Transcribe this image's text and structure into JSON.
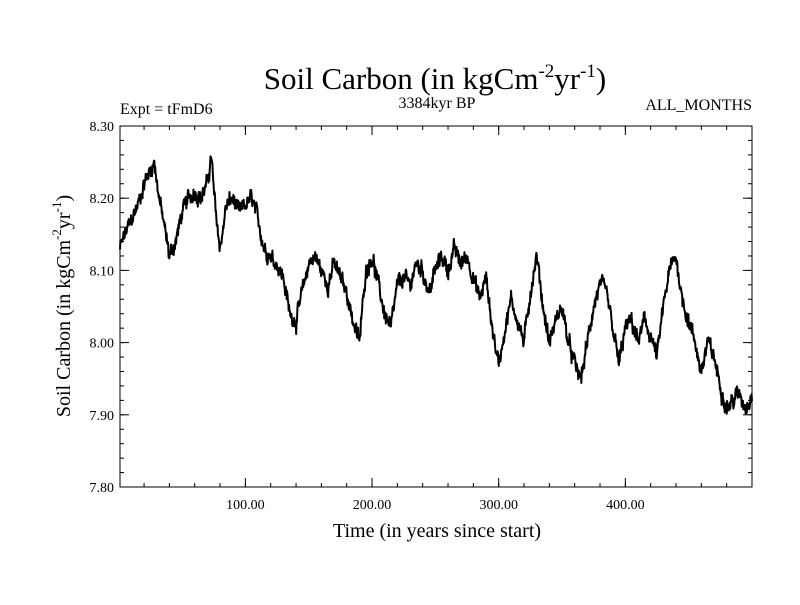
{
  "chart_data": {
    "type": "line",
    "title_main": "Soil Carbon (in kgCm",
    "title_sup1": "-2",
    "title_mid": "yr",
    "title_sup2": "-1",
    "title_end": ")",
    "experiment": "Expt = tFmD6",
    "period": "3384kyr BP",
    "months": "ALL_MONTHS",
    "xlabel": "Time (in years since start)",
    "ylabel_main": "Soil Carbon (in kgCm",
    "ylabel_sup1": "-2",
    "ylabel_mid": "yr",
    "ylabel_sup2": "-1",
    "ylabel_end": ")",
    "xlim": [
      1,
      500
    ],
    "ylim": [
      7.8,
      8.3
    ],
    "x_ticks": [
      100,
      200,
      300,
      400
    ],
    "x_tick_labels": [
      "100.00",
      "200.00",
      "300.00",
      "400.00"
    ],
    "y_ticks": [
      7.8,
      7.9,
      8.0,
      8.1,
      8.2,
      8.3
    ],
    "y_tick_labels": [
      "7.80",
      "7.90",
      "8.00",
      "8.10",
      "8.20",
      "8.30"
    ],
    "series": [
      {
        "name": "Soil Carbon",
        "x": [
          1,
          5,
          10,
          15,
          20,
          25,
          28,
          32,
          36,
          40,
          45,
          50,
          55,
          60,
          65,
          70,
          73,
          76,
          80,
          85,
          90,
          95,
          100,
          105,
          110,
          115,
          120,
          125,
          130,
          135,
          140,
          145,
          150,
          155,
          160,
          165,
          170,
          175,
          180,
          185,
          190,
          195,
          200,
          205,
          210,
          215,
          220,
          225,
          230,
          235,
          240,
          245,
          250,
          255,
          260,
          265,
          270,
          275,
          280,
          285,
          290,
          295,
          300,
          305,
          310,
          315,
          320,
          325,
          330,
          335,
          340,
          345,
          350,
          355,
          360,
          365,
          370,
          375,
          380,
          385,
          390,
          395,
          400,
          405,
          410,
          415,
          420,
          425,
          430,
          435,
          440,
          445,
          450,
          455,
          460,
          465,
          470,
          475,
          480,
          485,
          490,
          495,
          500
        ],
        "y": [
          8.13,
          8.15,
          8.17,
          8.19,
          8.22,
          8.24,
          8.25,
          8.2,
          8.16,
          8.12,
          8.14,
          8.18,
          8.2,
          8.21,
          8.2,
          8.22,
          8.26,
          8.19,
          8.13,
          8.19,
          8.2,
          8.18,
          8.19,
          8.2,
          8.17,
          8.13,
          8.12,
          8.11,
          8.09,
          8.04,
          8.03,
          8.07,
          8.11,
          8.12,
          8.1,
          8.08,
          8.11,
          8.09,
          8.07,
          8.03,
          8.0,
          8.1,
          8.12,
          8.08,
          8.04,
          8.02,
          8.08,
          8.09,
          8.08,
          8.11,
          8.1,
          8.07,
          8.1,
          8.12,
          8.1,
          8.13,
          8.11,
          8.12,
          8.09,
          8.06,
          8.09,
          8.02,
          7.97,
          8.02,
          8.06,
          8.03,
          8.0,
          8.07,
          8.12,
          8.05,
          8.0,
          8.03,
          8.05,
          8.0,
          7.97,
          7.95,
          8.0,
          8.05,
          8.08,
          8.07,
          8.02,
          7.97,
          8.02,
          8.03,
          8.0,
          8.03,
          8.01,
          7.98,
          8.05,
          8.1,
          8.12,
          8.06,
          8.03,
          8.0,
          7.96,
          8.0,
          7.98,
          7.94,
          7.91,
          7.92,
          7.93,
          7.91,
          7.93
        ]
      }
    ]
  }
}
